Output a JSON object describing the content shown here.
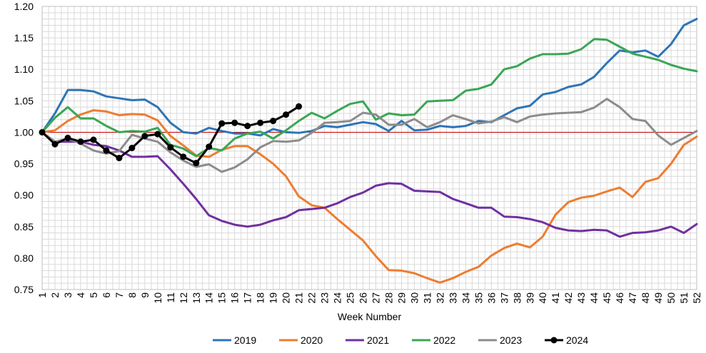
{
  "chart_data": {
    "type": "line",
    "xlabel": "Week Number",
    "ylabel": "",
    "xlim": [
      1,
      52
    ],
    "ylim": [
      0.75,
      1.2
    ],
    "y_ticks": [
      "0.75",
      "0.80",
      "0.85",
      "0.90",
      "0.95",
      "1.00",
      "1.05",
      "1.10",
      "1.15",
      "1.20"
    ],
    "x_ticks": [
      "1",
      "2",
      "3",
      "4",
      "5",
      "6",
      "7",
      "8",
      "9",
      "10",
      "11",
      "12",
      "13",
      "14",
      "15",
      "16",
      "17",
      "18",
      "19",
      "20",
      "21",
      "22",
      "23",
      "24",
      "25",
      "26",
      "27",
      "28",
      "29",
      "30",
      "31",
      "32",
      "33",
      "34",
      "35",
      "36",
      "37",
      "38",
      "39",
      "40",
      "41",
      "42",
      "43",
      "44",
      "45",
      "46",
      "47",
      "48",
      "49",
      "50",
      "51",
      "52"
    ],
    "reference_line": {
      "y": 1.0,
      "color": "#c00000"
    },
    "grid": true,
    "legend_position": "bottom",
    "series": [
      {
        "name": "2019",
        "color": "#2e75b6",
        "markers": false,
        "values": [
          1.0,
          1.03,
          1.067,
          1.067,
          1.065,
          1.057,
          1.054,
          1.051,
          1.052,
          1.04,
          1.015,
          1.0,
          0.998,
          1.007,
          1.002,
          0.998,
          0.998,
          0.995,
          1.005,
          1.0,
          0.999,
          1.002,
          1.01,
          1.008,
          1.012,
          1.016,
          1.013,
          1.002,
          1.018,
          1.003,
          1.004,
          1.01,
          1.008,
          1.01,
          1.018,
          1.016,
          1.027,
          1.038,
          1.042,
          1.06,
          1.064,
          1.072,
          1.076,
          1.088,
          1.11,
          1.13,
          1.127,
          1.13,
          1.12,
          1.14,
          1.17,
          1.18
        ]
      },
      {
        "name": "2020",
        "color": "#ed7d31",
        "markers": false,
        "values": [
          1.0,
          1.003,
          1.018,
          1.028,
          1.035,
          1.033,
          1.027,
          1.029,
          1.028,
          1.019,
          0.994,
          0.979,
          0.963,
          0.961,
          0.972,
          0.978,
          0.978,
          0.965,
          0.95,
          0.93,
          0.898,
          0.884,
          0.88,
          0.862,
          0.845,
          0.828,
          0.803,
          0.781,
          0.78,
          0.776,
          0.768,
          0.761,
          0.768,
          0.778,
          0.786,
          0.804,
          0.816,
          0.823,
          0.817,
          0.834,
          0.869,
          0.889,
          0.896,
          0.899,
          0.906,
          0.912,
          0.897,
          0.921,
          0.927,
          0.95,
          0.98,
          0.993
        ]
      },
      {
        "name": "2021",
        "color": "#7030a0",
        "markers": false,
        "values": [
          1.0,
          0.985,
          0.985,
          0.985,
          0.98,
          0.978,
          0.971,
          0.961,
          0.961,
          0.962,
          0.941,
          0.918,
          0.894,
          0.868,
          0.859,
          0.853,
          0.85,
          0.853,
          0.86,
          0.865,
          0.876,
          0.878,
          0.88,
          0.887,
          0.897,
          0.904,
          0.915,
          0.919,
          0.918,
          0.907,
          0.906,
          0.905,
          0.894,
          0.887,
          0.88,
          0.88,
          0.866,
          0.865,
          0.862,
          0.857,
          0.848,
          0.844,
          0.843,
          0.845,
          0.844,
          0.834,
          0.84,
          0.841,
          0.844,
          0.85,
          0.84,
          0.854
        ]
      },
      {
        "name": "2022",
        "color": "#3aa655",
        "markers": false,
        "values": [
          1.0,
          1.023,
          1.04,
          1.022,
          1.022,
          1.01,
          1.0,
          1.002,
          1.001,
          1.007,
          0.98,
          0.974,
          0.962,
          0.975,
          0.971,
          0.99,
          0.998,
          1.001,
          0.99,
          1.003,
          1.018,
          1.031,
          1.022,
          1.034,
          1.045,
          1.049,
          1.02,
          1.03,
          1.027,
          1.028,
          1.049,
          1.05,
          1.051,
          1.066,
          1.069,
          1.076,
          1.1,
          1.105,
          1.117,
          1.124,
          1.124,
          1.125,
          1.132,
          1.148,
          1.147,
          1.136,
          1.125,
          1.12,
          1.115,
          1.107,
          1.101,
          1.097
        ]
      },
      {
        "name": "2023",
        "color": "#8c8c8c",
        "markers": false,
        "values": [
          1.0,
          0.985,
          0.99,
          0.982,
          0.971,
          0.966,
          0.97,
          0.996,
          0.99,
          0.985,
          0.968,
          0.955,
          0.945,
          0.949,
          0.937,
          0.944,
          0.957,
          0.976,
          0.986,
          0.985,
          0.987,
          0.999,
          1.015,
          1.016,
          1.018,
          1.031,
          1.028,
          1.012,
          1.012,
          1.021,
          1.008,
          1.016,
          1.027,
          1.021,
          1.014,
          1.017,
          1.024,
          1.016,
          1.025,
          1.028,
          1.03,
          1.031,
          1.032,
          1.039,
          1.053,
          1.04,
          1.021,
          1.018,
          0.995,
          0.98,
          0.991,
          1.002
        ]
      },
      {
        "name": "2024",
        "color": "#000000",
        "markers": true,
        "values": [
          1.0,
          0.981,
          0.991,
          0.985,
          0.988,
          0.971,
          0.959,
          0.975,
          0.994,
          0.997,
          0.976,
          0.961,
          0.951,
          0.977,
          1.014,
          1.015,
          1.01,
          1.015,
          1.018,
          1.028,
          1.041
        ]
      }
    ]
  }
}
